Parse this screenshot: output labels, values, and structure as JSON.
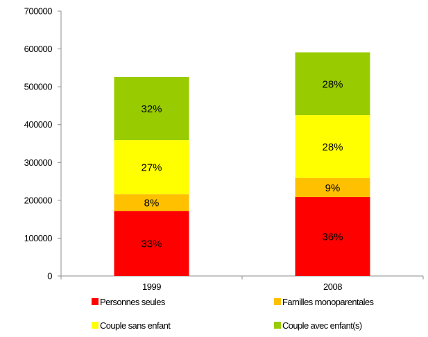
{
  "chart_data": {
    "type": "bar",
    "stacked": true,
    "categories": [
      "1999",
      "2008"
    ],
    "ylim": [
      0,
      700000
    ],
    "yticks": [
      0,
      100000,
      200000,
      300000,
      400000,
      500000,
      600000,
      700000
    ],
    "ytick_labels": [
      "0",
      "100000",
      "200000",
      "300000",
      "400000",
      "500000",
      "600000",
      "700000"
    ],
    "grid": false,
    "legend_position": "bottom",
    "series": [
      {
        "name": "Personnes seules",
        "color": "#ff0000",
        "values": [
          172000,
          209000
        ],
        "labels": [
          "33%",
          "36%"
        ]
      },
      {
        "name": "Familles monoparentales",
        "color": "#ffc000",
        "values": [
          44000,
          50000
        ],
        "labels": [
          "8%",
          "9%"
        ]
      },
      {
        "name": "Couple sans enfant",
        "color": "#ffff00",
        "values": [
          143000,
          166000
        ],
        "labels": [
          "27%",
          "28%"
        ]
      },
      {
        "name": "Couple avec enfant(s)",
        "color": "#99cc00",
        "values": [
          167000,
          166000
        ],
        "labels": [
          "32%",
          "28%"
        ]
      }
    ]
  }
}
